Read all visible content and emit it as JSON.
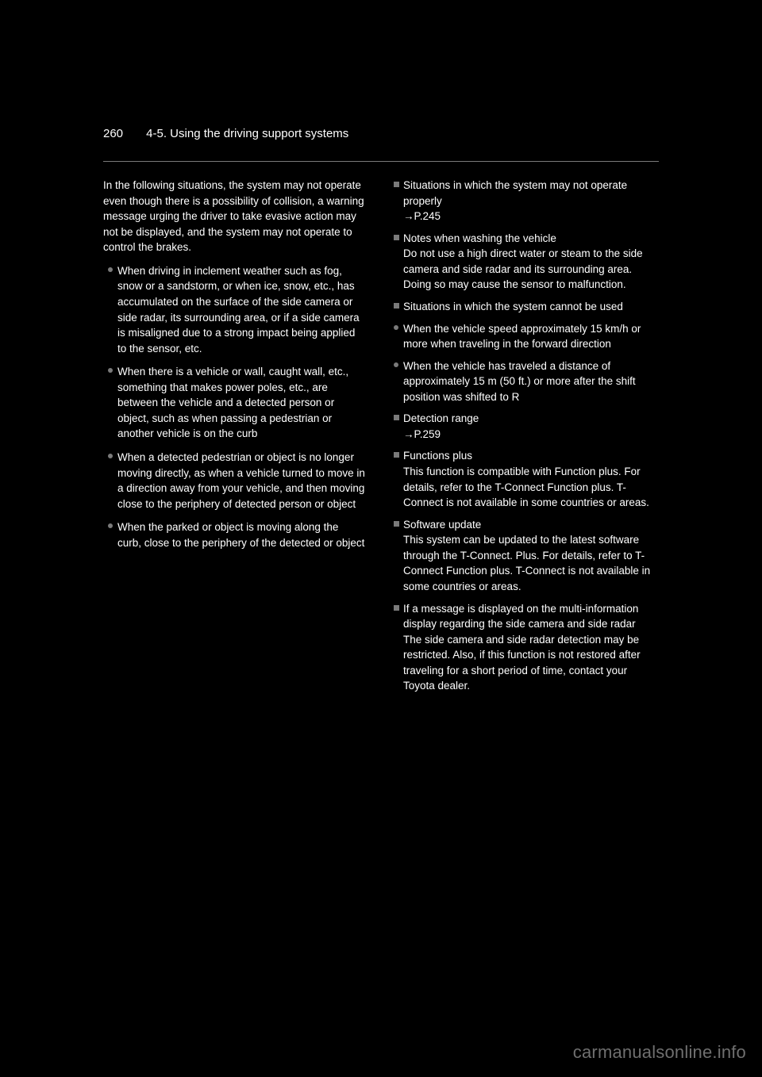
{
  "header": {
    "page_number": "260",
    "chapter": "4-5. Using the driving support systems"
  },
  "left": {
    "lead": "In the following situations, the system may not operate even though there is a possibility of collision, a warning message urging the driver to take evasive action may not be displayed, and the system may not operate to control the brakes.",
    "items": [
      "When driving in inclement weather such as fog, snow or a sandstorm, or when ice, snow, etc., has accumulated on the surface of the side camera or side radar, its surrounding area, or if a side camera is misaligned due to a strong impact being applied to the sensor, etc.",
      "When there is a vehicle or wall, caught wall, etc., something that makes power poles, etc., are between the vehicle and a detected person or object, such as when passing a pedestrian or another vehicle is on the curb",
      "When a detected pedestrian or object is no longer moving directly, as when a vehicle turned to move in a direction away from your vehicle, and then moving close to the periphery of detected person or object",
      "When the parked or object is moving along the curb, close to the periphery of the detected or object"
    ]
  },
  "right": {
    "sections": [
      {
        "type": "square",
        "title": "Situations in which the system may not operate properly",
        "body": "→P.245"
      },
      {
        "type": "square",
        "title": "Notes when washing the vehicle",
        "body": "Do not use a high direct water or steam to the side camera and side radar and its surrounding area. Doing so may cause the sensor to malfunction."
      },
      {
        "type": "square",
        "title": "Situations in which the system cannot be used",
        "sub": [
          "When the vehicle speed approximately 15 km/h or more when traveling in the forward direction",
          "When the vehicle has traveled a distance of approximately 15 m (50 ft.) or more after the shift position was shifted to R"
        ]
      },
      {
        "type": "square",
        "title": "Detection range",
        "body": "→P.259"
      },
      {
        "type": "square",
        "title": "Functions plus",
        "body": "This function is compatible with Function plus. For details, refer to the T-Connect Function plus. T-Connect is not available in some countries or areas."
      },
      {
        "type": "square",
        "title": "Software update",
        "body": "This system can be updated to the latest software through the T-Connect. Plus. For details, refer to T-Connect Function plus. T-Connect is not available in some countries or areas."
      },
      {
        "type": "square",
        "title": "If a message is displayed on the multi-information display regarding the side camera and side radar",
        "body": "The side camera and side radar detection may be restricted. Also, if this function is not restored after traveling for a short period of time, contact your Toyota dealer."
      }
    ]
  },
  "watermark": "carmanualsonline.info"
}
